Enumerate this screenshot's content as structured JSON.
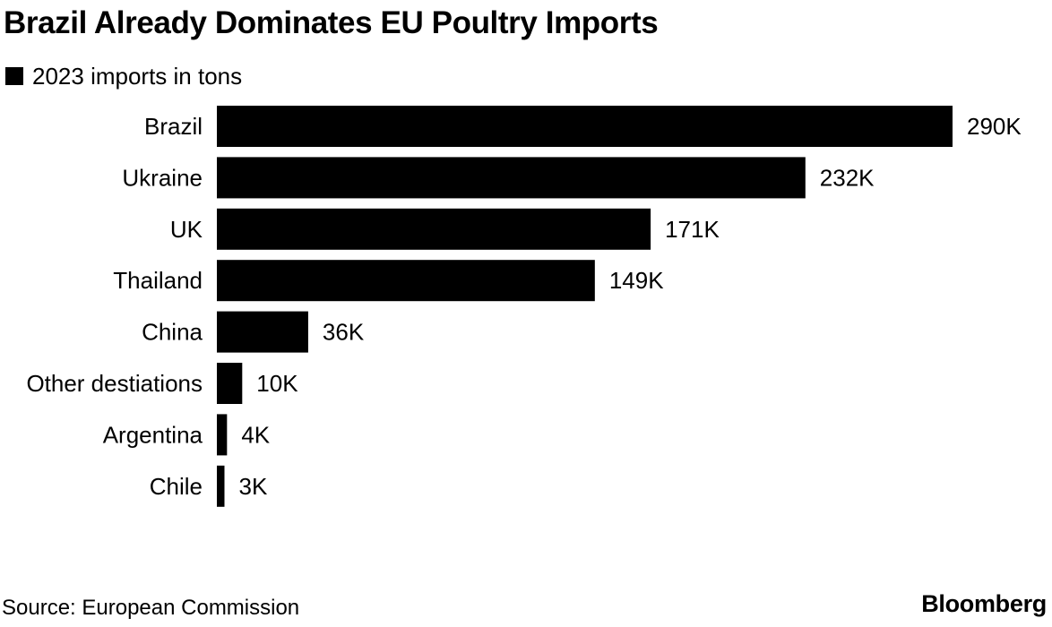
{
  "header": {
    "title": "Brazil Already Dominates EU Poultry Imports"
  },
  "legend": {
    "label": "2023 imports in tons",
    "color": "#000000"
  },
  "footer": {
    "source": "Source: European Commission",
    "brand": "Bloomberg"
  },
  "chart_data": {
    "type": "bar",
    "orientation": "horizontal",
    "title": "Brazil Already Dominates EU Poultry Imports",
    "xlabel": "",
    "ylabel": "",
    "legend_position": "top-left",
    "grid": false,
    "categories": [
      "Brazil",
      "Ukraine",
      "UK",
      "Thailand",
      "China",
      "Other destiations",
      "Argentina",
      "Chile"
    ],
    "series": [
      {
        "name": "2023 imports in tons",
        "color": "#000000",
        "values": [
          290000,
          232000,
          171000,
          149000,
          36000,
          10000,
          4000,
          3000
        ],
        "data_labels": [
          "290K",
          "232K",
          "171K",
          "149K",
          "36K",
          "10K",
          "4K",
          "3K"
        ]
      }
    ],
    "xlim": [
      0,
      290000
    ]
  }
}
